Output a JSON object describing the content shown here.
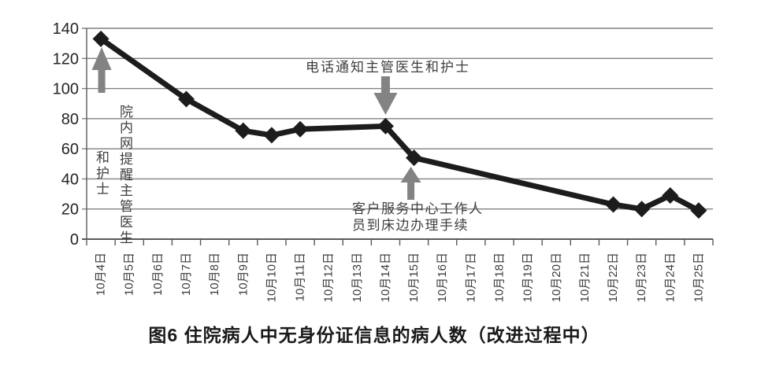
{
  "chart_data": {
    "type": "line",
    "title": "图6  住院病人中无身份证信息的病人数（改进过程中）",
    "xlabel": "",
    "ylabel": "",
    "ylim": [
      0,
      140
    ],
    "ytick_step": 20,
    "grid": true,
    "legend": "none",
    "marker": "diamond",
    "line_color": "#1c1c1c",
    "grid_color": "#828282",
    "axis_color": "#5a5a5a",
    "arrow_color": "#838383",
    "categories": [
      "10月4日",
      "10月5日",
      "10月6日",
      "10月7日",
      "10月8日",
      "10月9日",
      "10月10日",
      "10月11日",
      "10月12日",
      "10月13日",
      "10月14日",
      "10月15日",
      "10月16日",
      "10月17日",
      "10月18日",
      "10月19日",
      "10月20日",
      "10月21日",
      "10月22日",
      "10月23日",
      "10月24日",
      "10月25日"
    ],
    "values": [
      133,
      null,
      null,
      93,
      null,
      72,
      69,
      73,
      null,
      null,
      75,
      54,
      null,
      null,
      null,
      null,
      null,
      null,
      23,
      20,
      29,
      19
    ],
    "yticks": [
      0,
      20,
      40,
      60,
      80,
      100,
      120,
      140
    ],
    "annotations": [
      {
        "id": "intranet-reminder",
        "text": "院内网提醒主管医生和护士",
        "columns": [
          "院内网提醒主管医生",
          "和护士"
        ],
        "arrow": "up",
        "target": "10月4日"
      },
      {
        "id": "phone-notify",
        "text": "电话通知主管医生和护士",
        "arrow": "down",
        "target": "10月14日"
      },
      {
        "id": "bedside-service",
        "text": "客户服务中心工作人员到床边办理手续",
        "lines": [
          "客户服务中心工作人",
          "员到床边办理手续"
        ],
        "arrow": "up",
        "target": "10月15日"
      }
    ]
  }
}
